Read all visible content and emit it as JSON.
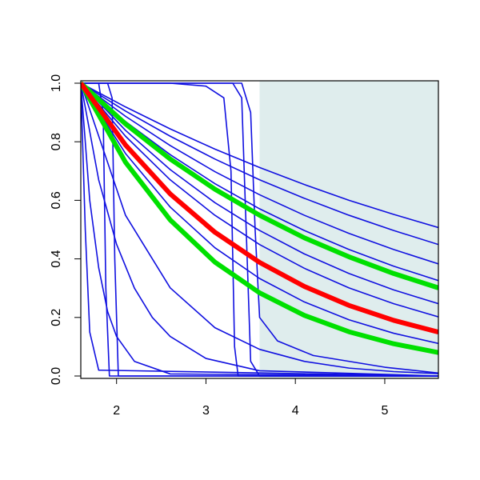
{
  "chart_data": {
    "type": "line",
    "xlim": [
      1.6,
      5.6
    ],
    "ylim": [
      0,
      1
    ],
    "xticks": [
      2,
      3,
      4,
      5
    ],
    "yticks": [
      {
        "value": 0,
        "label": "0.0"
      },
      {
        "value": 0.2,
        "label": "0.2"
      },
      {
        "value": 0.4,
        "label": "0.4"
      },
      {
        "value": 0.6,
        "label": "0.6"
      },
      {
        "value": 0.8,
        "label": "0.8"
      },
      {
        "value": 1,
        "label": "1.0"
      }
    ],
    "shade_x": [
      3.6,
      5.6
    ],
    "shade_color": "#dfeded",
    "series": [
      {
        "color": "#1010e0",
        "x": [
          1.6,
          2.1,
          2.6,
          3.1,
          3.6,
          4.1,
          4.6,
          5.1,
          5.6
        ],
        "values": [
          1,
          0.919,
          0.844,
          0.775,
          0.712,
          0.654,
          0.6,
          0.552,
          0.507
        ]
      },
      {
        "color": "#1010e0",
        "x": [
          1.6,
          2.1,
          2.6,
          3.1,
          3.6,
          4.1,
          4.6,
          5.1,
          5.6
        ],
        "values": [
          1,
          0.905,
          0.819,
          0.741,
          0.67,
          0.607,
          0.549,
          0.497,
          0.449
        ]
      },
      {
        "color": "#1010e0",
        "x": [
          1.6,
          2.1,
          2.6,
          3.1,
          3.6,
          4.1,
          4.6,
          5.1,
          5.6
        ],
        "values": [
          1,
          0.887,
          0.787,
          0.698,
          0.619,
          0.549,
          0.487,
          0.432,
          0.383
        ]
      },
      {
        "color": "#1010e0",
        "x": [
          1.6,
          2.1,
          2.6,
          3.1,
          3.6,
          4.1,
          4.6,
          5.1,
          5.6
        ],
        "values": [
          1,
          0.869,
          0.756,
          0.657,
          0.571,
          0.497,
          0.432,
          0.375,
          0.326
        ]
      },
      {
        "color": "#1010e0",
        "x": [
          1.6,
          2.1,
          2.6,
          3.1,
          3.6,
          4.1,
          4.6,
          5.1,
          5.6
        ],
        "values": [
          1,
          0.839,
          0.705,
          0.592,
          0.497,
          0.417,
          0.35,
          0.294,
          0.247
        ]
      },
      {
        "color": "#1010e0",
        "x": [
          1.6,
          2.1,
          2.6,
          3.1,
          3.6,
          4.1,
          4.6,
          5.1,
          5.6
        ],
        "values": [
          1,
          0.819,
          0.67,
          0.549,
          0.449,
          0.368,
          0.301,
          0.247,
          0.202
        ]
      },
      {
        "color": "#1010e0",
        "x": [
          1.6,
          2.1,
          2.6,
          3.1,
          3.6,
          4.1,
          4.6,
          5.1,
          5.6
        ],
        "values": [
          1,
          0.76,
          0.577,
          0.438,
          0.333,
          0.253,
          0.192,
          0.146,
          0.111
        ]
      },
      {
        "color": "#1010e0",
        "x": [
          1.6,
          2.1,
          2.6,
          3.1,
          3.6,
          4.1,
          4.6,
          5.1,
          5.6
        ],
        "values": [
          1,
          0.549,
          0.301,
          0.165,
          0.091,
          0.05,
          0.027,
          0.015,
          0.008
        ]
      },
      {
        "color": "#1010e0",
        "x": [
          1.6,
          1.8,
          2.0,
          2.2,
          2.4,
          2.6,
          3.0,
          3.6,
          5.6
        ],
        "values": [
          1,
          0.67,
          0.45,
          0.3,
          0.2,
          0.135,
          0.06,
          0.018,
          0
        ]
      },
      {
        "color": "#1010e0",
        "x": [
          1.6,
          1.7,
          1.8,
          1.9,
          2.0,
          2.2,
          2.6,
          5.6
        ],
        "values": [
          1,
          0.6,
          0.37,
          0.22,
          0.135,
          0.05,
          0.007,
          0
        ]
      },
      {
        "color": "#1010e0",
        "x": [
          1.6,
          1.62,
          1.65,
          1.7,
          1.8,
          5.6
        ],
        "values": [
          1,
          0.8,
          0.5,
          0.15,
          0.02,
          0
        ]
      },
      {
        "color": "#1010e0",
        "x": [
          1.6,
          1.8,
          1.85,
          1.88,
          1.92,
          5.6
        ],
        "values": [
          1,
          1,
          0.9,
          0.3,
          0,
          0
        ]
      },
      {
        "color": "#1010e0",
        "x": [
          1.6,
          1.9,
          1.95,
          1.98,
          2.02,
          5.6
        ],
        "values": [
          1,
          1,
          0.95,
          0.4,
          0,
          0
        ]
      },
      {
        "color": "#1010e0",
        "x": [
          1.6,
          2.6,
          3.0,
          3.2,
          3.28,
          3.32,
          3.36,
          5.6
        ],
        "values": [
          1,
          1,
          0.99,
          0.95,
          0.7,
          0.1,
          0,
          0
        ]
      },
      {
        "color": "#1010e0",
        "x": [
          1.6,
          3.3,
          3.4,
          3.45,
          3.5,
          3.6,
          5.6
        ],
        "values": [
          1,
          1,
          0.95,
          0.5,
          0.05,
          0,
          0
        ]
      },
      {
        "color": "#1010e0",
        "x": [
          1.6,
          3.4,
          3.5,
          3.55,
          3.6,
          3.8,
          4.2,
          5.0,
          5.6
        ],
        "values": [
          1,
          1,
          0.9,
          0.5,
          0.2,
          0.12,
          0.07,
          0.03,
          0.01
        ]
      },
      {
        "color": "#00e000",
        "x": [
          1.6,
          2.1,
          2.6,
          3.1,
          3.6,
          4.1,
          4.6,
          5.1,
          5.6
        ],
        "values": [
          1,
          0.861,
          0.741,
          0.638,
          0.549,
          0.472,
          0.407,
          0.35,
          0.301
        ]
      },
      {
        "color": "#00e000",
        "x": [
          1.6,
          2.1,
          2.6,
          3.1,
          3.6,
          4.1,
          4.6,
          5.1,
          5.6
        ],
        "values": [
          1,
          0.73,
          0.533,
          0.389,
          0.284,
          0.207,
          0.151,
          0.11,
          0.08
        ]
      },
      {
        "color": "#ff0000",
        "x": [
          1.6,
          2.1,
          2.6,
          3.1,
          3.6,
          4.1,
          4.6,
          5.1,
          5.6
        ],
        "values": [
          1,
          0.789,
          0.622,
          0.491,
          0.388,
          0.306,
          0.241,
          0.19,
          0.15
        ]
      }
    ]
  }
}
